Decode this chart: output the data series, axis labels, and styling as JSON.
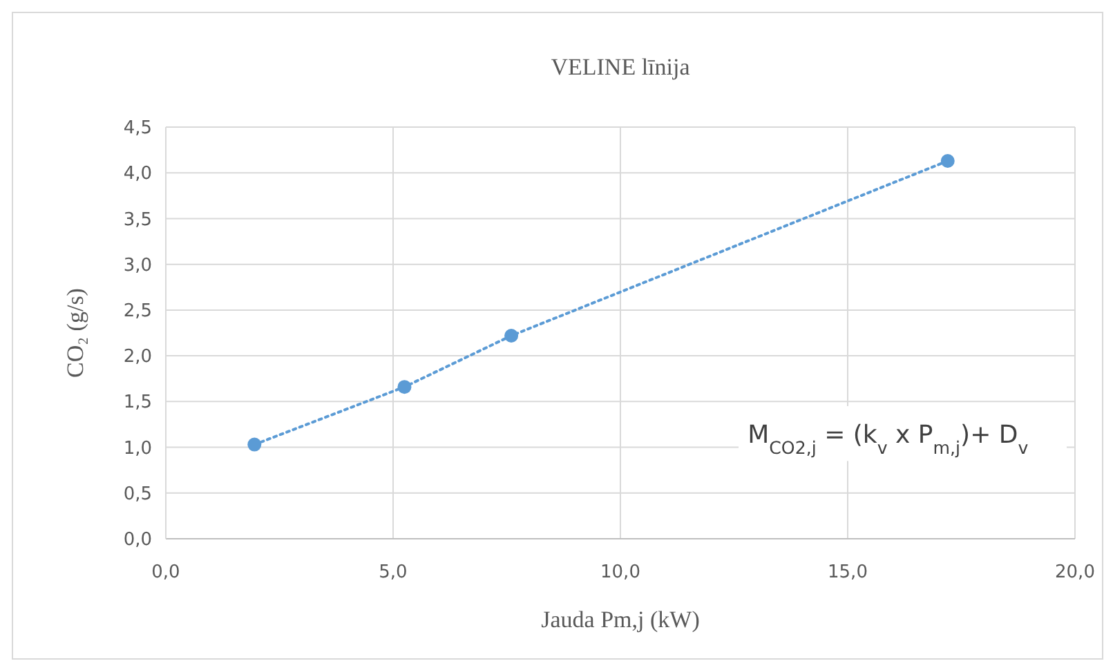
{
  "chart_data": {
    "type": "line",
    "title": "VELINE līnija",
    "xlabel": "Jauda Pm,j (kW)",
    "ylabel": "CO₂ (g/s)",
    "x": [
      1.95,
      5.25,
      7.6,
      17.2
    ],
    "series": [
      {
        "color": "#5b9bd5",
        "values": [
          1.03,
          1.66,
          2.22,
          4.13
        ]
      }
    ],
    "marker": "circle",
    "line_style": "dotted",
    "grid": true,
    "xlim": [
      0,
      20
    ],
    "xticks": [
      {
        "value": 0,
        "label": "0,0"
      },
      {
        "value": 5,
        "label": "5,0"
      },
      {
        "value": 10,
        "label": "10,0"
      },
      {
        "value": 15,
        "label": "15,0"
      },
      {
        "value": 20,
        "label": "20,0"
      }
    ],
    "ylim": [
      0,
      4.5
    ],
    "yticks": [
      {
        "value": 0,
        "label": "0,0"
      },
      {
        "value": 0.5,
        "label": "0,5"
      },
      {
        "value": 1,
        "label": "1,0"
      },
      {
        "value": 1.5,
        "label": "1,5"
      },
      {
        "value": 2,
        "label": "2,0"
      },
      {
        "value": 2.5,
        "label": "2,5"
      },
      {
        "value": 3,
        "label": "3,0"
      },
      {
        "value": 3.5,
        "label": "3,5"
      },
      {
        "value": 4,
        "label": "4,0"
      },
      {
        "value": 4.5,
        "label": "4,5"
      }
    ],
    "annotations": [
      "M$_{CO2,j}$ = (k$_{v}$ x  P$_{m,j}$)+ D$_{v}$"
    ]
  }
}
